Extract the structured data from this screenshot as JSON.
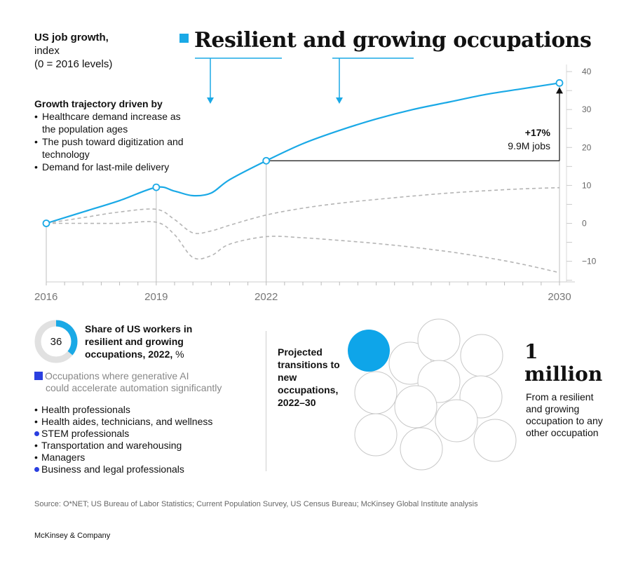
{
  "header": {
    "ylabel_line1": "US job growth,",
    "ylabel_line2": "index",
    "ylabel_line3": "(0 = 2016 levels)",
    "title": "Resilient and growing occupations",
    "accent_color": "#1aa9e6"
  },
  "drivers": {
    "heading": "Growth trajectory driven by",
    "items": [
      "Healthcare demand increase as the population ages",
      "The push toward digitization and technology",
      "Demand for last-mile delivery"
    ]
  },
  "callout": {
    "pct": "+17%",
    "jobs": "9.9M jobs"
  },
  "chart_data": {
    "type": "line",
    "x_ticks": [
      "2016",
      "2019",
      "2022",
      "2030"
    ],
    "y_ticks": [
      "40",
      "30",
      "20",
      "10",
      "0",
      "−10"
    ],
    "ylim": [
      -15,
      41
    ],
    "xlim": [
      2016,
      2030
    ],
    "series": [
      {
        "style": "solid",
        "color": "#1aa9e6",
        "points": [
          [
            2016,
            0
          ],
          [
            2017,
            3
          ],
          [
            2018,
            6
          ],
          [
            2019,
            9.5
          ],
          [
            2019.5,
            8.5
          ],
          [
            2020,
            7.3
          ],
          [
            2020.5,
            8
          ],
          [
            2021,
            11.5
          ],
          [
            2022,
            16.5
          ],
          [
            2023,
            21
          ],
          [
            2024,
            24.5
          ],
          [
            2025,
            27.5
          ],
          [
            2026,
            30
          ],
          [
            2027,
            32
          ],
          [
            2028,
            34
          ],
          [
            2029,
            35.5
          ],
          [
            2030,
            37
          ]
        ],
        "markers": [
          [
            2016,
            0
          ],
          [
            2019,
            9.5
          ],
          [
            2022,
            16.5
          ],
          [
            2030,
            37
          ]
        ]
      },
      {
        "style": "dashed",
        "color": "#b5b5b5",
        "points": [
          [
            2016,
            0
          ],
          [
            2017,
            1.5
          ],
          [
            2018,
            3
          ],
          [
            2019,
            3.7
          ],
          [
            2019.5,
            1
          ],
          [
            2020,
            -2.5
          ],
          [
            2020.5,
            -2
          ],
          [
            2021,
            -0.5
          ],
          [
            2022,
            2.2
          ],
          [
            2023,
            4
          ],
          [
            2024,
            5.3
          ],
          [
            2025,
            6.3
          ],
          [
            2026,
            7.2
          ],
          [
            2027,
            8
          ],
          [
            2028,
            8.6
          ],
          [
            2029,
            9.1
          ],
          [
            2030,
            9.4
          ]
        ]
      },
      {
        "style": "dashed",
        "color": "#b5b5b5",
        "points": [
          [
            2016,
            0
          ],
          [
            2017,
            0
          ],
          [
            2018,
            0
          ],
          [
            2019,
            0.3
          ],
          [
            2019.5,
            -3
          ],
          [
            2020,
            -9
          ],
          [
            2020.5,
            -8.5
          ],
          [
            2021,
            -5.5
          ],
          [
            2022,
            -3.5
          ],
          [
            2023,
            -3.8
          ],
          [
            2024,
            -4.5
          ],
          [
            2025,
            -5.3
          ],
          [
            2026,
            -6.3
          ],
          [
            2027,
            -7.5
          ],
          [
            2028,
            -9
          ],
          [
            2029,
            -10.8
          ],
          [
            2030,
            -13
          ]
        ]
      }
    ]
  },
  "share": {
    "value": "36",
    "fraction": 0.36,
    "label_bold": "Share of US workers in resilient and growing occupations, 2022,",
    "label_unit": "%"
  },
  "legend": {
    "line1": "Occupations where generative AI",
    "line2": "could accelerate automation significantly",
    "marker_color": "#2a3fe0"
  },
  "occupations": [
    {
      "label": "Health professionals",
      "ai": false
    },
    {
      "label": "Health aides, technicians, and wellness",
      "ai": false
    },
    {
      "label": "STEM professionals",
      "ai": true
    },
    {
      "label": "Transportation and warehousing",
      "ai": false
    },
    {
      "label": "Managers",
      "ai": false
    },
    {
      "label": "Business and legal professionals",
      "ai": true
    }
  ],
  "transitions": {
    "label": "Projected transitions to new occupations, 2022–30",
    "big_line1": "1",
    "big_line2": "million",
    "description": "From a resilient and growing occupation to any other occupation",
    "highlight_color": "#0ea5e9"
  },
  "footer": {
    "source": "Source: O*NET; US Bureau of Labor Statistics; Current Population Survey, US Census Bureau; McKinsey Global Institute analysis",
    "brand": "McKinsey & Company"
  }
}
